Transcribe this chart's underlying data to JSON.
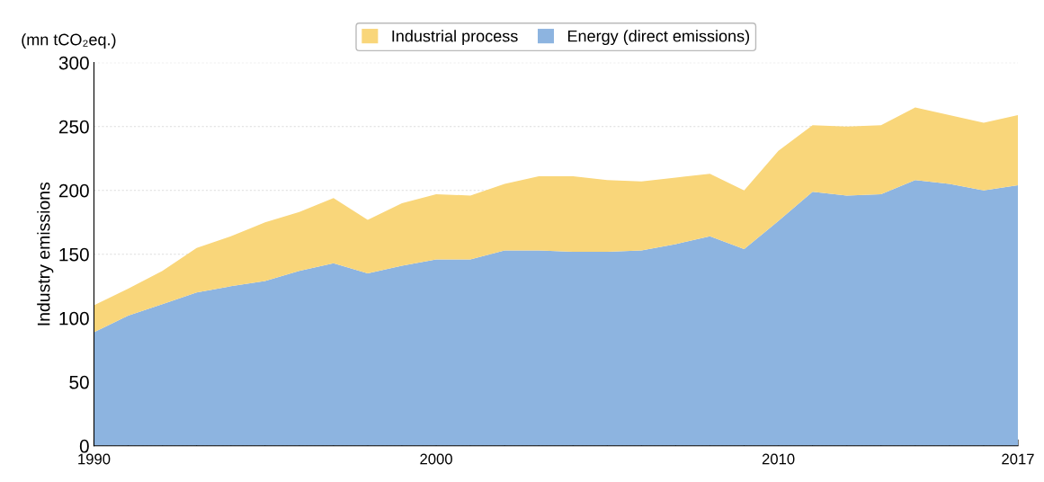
{
  "chart_data": {
    "type": "area",
    "stacked": true,
    "ylabel": "Industry emissions",
    "annotations": [
      "(mn tCO₂eq.)"
    ],
    "x": [
      1990,
      1991,
      1992,
      1993,
      1994,
      1995,
      1996,
      1997,
      1998,
      1999,
      2000,
      2001,
      2002,
      2003,
      2004,
      2005,
      2006,
      2007,
      2008,
      2009,
      2010,
      2011,
      2012,
      2013,
      2014,
      2015,
      2016,
      2017
    ],
    "series": [
      {
        "name": "Energy (direct emissions)",
        "color": "#8db4e0",
        "values": [
          89,
          102,
          111,
          120,
          125,
          129,
          137,
          143,
          135,
          141,
          146,
          146,
          153,
          153,
          152,
          152,
          153,
          158,
          164,
          154,
          176,
          199,
          196,
          197,
          208,
          205,
          200,
          204
        ]
      },
      {
        "name": "Industrial process",
        "color": "#f9d67a",
        "values": [
          21,
          21,
          26,
          35,
          39,
          46,
          46,
          51,
          42,
          49,
          51,
          50,
          52,
          58,
          59,
          56,
          54,
          52,
          49,
          46,
          55,
          52,
          54,
          54,
          57,
          54,
          53,
          55
        ]
      }
    ],
    "xlim": [
      1990,
      2017
    ],
    "xticks": [
      1990,
      {
        "value": 1991,
        "label": null
      },
      {
        "value": 1992,
        "label": null
      },
      {
        "value": 1993,
        "label": null
      },
      {
        "value": 1994,
        "label": null
      },
      {
        "value": 1995,
        "label": null
      },
      {
        "value": 1996,
        "label": null
      },
      {
        "value": 1997,
        "label": null
      },
      {
        "value": 1998,
        "label": null
      },
      {
        "value": 1999,
        "label": null
      },
      2000,
      {
        "value": 2001,
        "label": null
      },
      {
        "value": 2002,
        "label": null
      },
      {
        "value": 2003,
        "label": null
      },
      {
        "value": 2004,
        "label": null
      },
      {
        "value": 2005,
        "label": null
      },
      {
        "value": 2006,
        "label": null
      },
      {
        "value": 2007,
        "label": null
      },
      {
        "value": 2008,
        "label": null
      },
      {
        "value": 2009,
        "label": null
      },
      2010,
      {
        "value": 2011,
        "label": null
      },
      {
        "value": 2012,
        "label": null
      },
      {
        "value": 2013,
        "label": null
      },
      {
        "value": 2014,
        "label": null
      },
      {
        "value": 2015,
        "label": null
      },
      {
        "value": 2016,
        "label": null
      },
      2017
    ],
    "ylim": [
      0,
      300
    ],
    "yticks": [
      0,
      50,
      100,
      150,
      200,
      250,
      300
    ],
    "grid": "y",
    "legend": "top"
  }
}
